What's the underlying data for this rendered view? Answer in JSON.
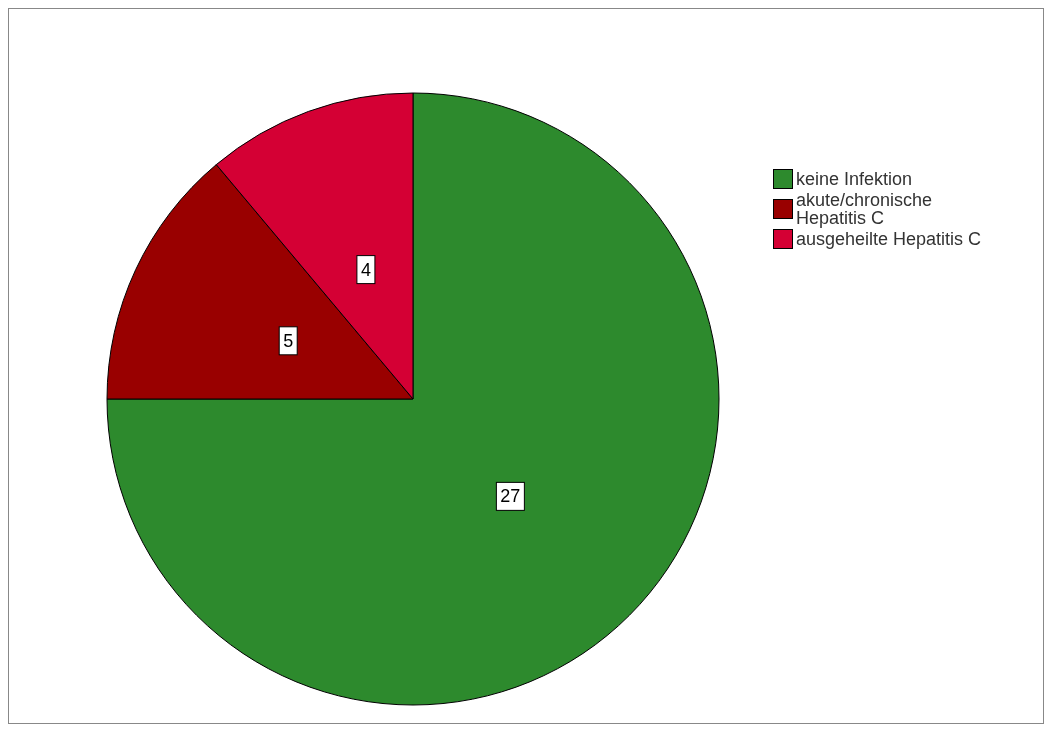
{
  "chart_data": {
    "type": "pie",
    "categories": [
      "keine Infektion",
      "akute/chronische Hepatitis C",
      "ausgeheilte Hepatitis C"
    ],
    "values": [
      27,
      5,
      4
    ],
    "colors": [
      "#2d8a2d",
      "#990000",
      "#d40034"
    ],
    "data_labels": true,
    "legend": "right"
  }
}
